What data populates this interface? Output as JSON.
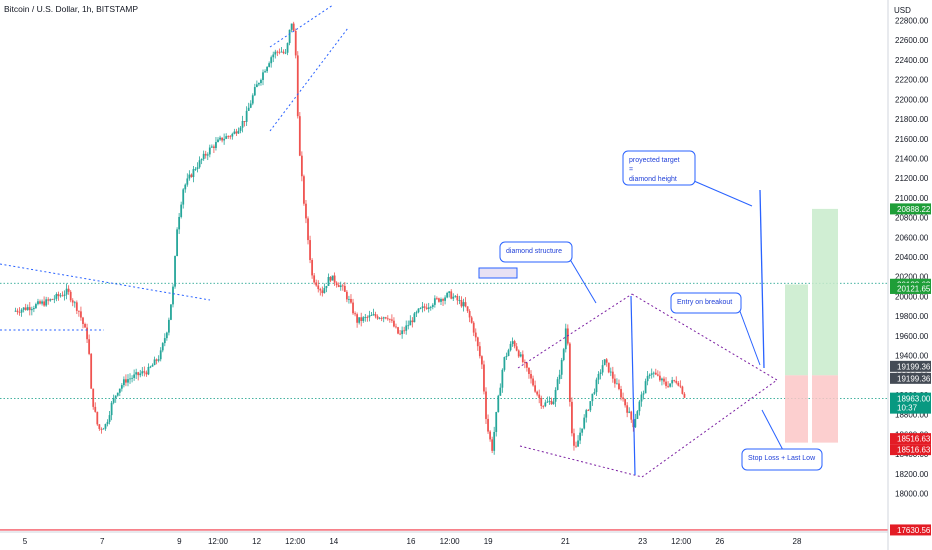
{
  "header": {
    "title": "Bitcoin / U.S. Dollar, 1h, BITSTAMP"
  },
  "colors": {
    "up": "#26a69a",
    "down": "#ef5350",
    "annotation": "#2962ff",
    "triangle": "#7b1fa2",
    "grid_line": "#089981",
    "target_zone": "#c8ebcb",
    "stop_zone": "#fcc7c7"
  },
  "chart_data": {
    "type": "candlestick",
    "symbol": "Bitcoin / U.S. Dollar",
    "interval": "1h",
    "exchange": "BITSTAMP",
    "currency": "USD",
    "ylim": [
      17630,
      23150
    ],
    "y_ticks": [
      {
        "value": 18000,
        "label": "18000.00"
      },
      {
        "value": 18200,
        "label": "18200.00"
      },
      {
        "value": 18400,
        "label": "18400.00"
      },
      {
        "value": 18600,
        "label": "18600.00"
      },
      {
        "value": 18800,
        "label": "18800.00"
      },
      {
        "value": 19000,
        "label": "19000.00"
      },
      {
        "value": 19200,
        "label": "19200.00"
      },
      {
        "value": 19400,
        "label": "19400.00"
      },
      {
        "value": 19600,
        "label": "19600.00"
      },
      {
        "value": 19800,
        "label": "19800.00"
      },
      {
        "value": 20000,
        "label": "20000.00"
      },
      {
        "value": 20200,
        "label": "20200.00"
      },
      {
        "value": 20400,
        "label": "20400.00"
      },
      {
        "value": 20600,
        "label": "20600.00"
      },
      {
        "value": 20800,
        "label": "20800.00"
      },
      {
        "value": 21000,
        "label": "21000.00"
      },
      {
        "value": 21200,
        "label": "21200.00"
      },
      {
        "value": 21400,
        "label": "21400.00"
      },
      {
        "value": 21600,
        "label": "21600.00"
      },
      {
        "value": 21800,
        "label": "21800.00"
      },
      {
        "value": 22000,
        "label": "22000.00"
      },
      {
        "value": 22200,
        "label": "22200.00"
      },
      {
        "value": 22400,
        "label": "22400.00"
      },
      {
        "value": 22600,
        "label": "22600.00"
      },
      {
        "value": 22800,
        "label": "22800.00"
      }
    ],
    "x_ticks": [
      {
        "t": 0,
        "label": "5"
      },
      {
        "t": 1,
        "label": "7"
      },
      {
        "t": 2,
        "label": "9"
      },
      {
        "t": 2.5,
        "label": "12:00"
      },
      {
        "t": 3,
        "label": "12"
      },
      {
        "t": 3.5,
        "label": "12:00"
      },
      {
        "t": 4,
        "label": "14"
      },
      {
        "t": 5,
        "label": "16"
      },
      {
        "t": 5.5,
        "label": "12:00"
      },
      {
        "t": 6,
        "label": "19"
      },
      {
        "t": 7,
        "label": "21"
      },
      {
        "t": 8,
        "label": "23"
      },
      {
        "t": 8.5,
        "label": "12:00"
      },
      {
        "t": 9,
        "label": "26"
      },
      {
        "t": 10,
        "label": "28"
      }
    ],
    "price_path": [
      [
        -0.15,
        19850
      ],
      [
        0.1,
        19900
      ],
      [
        0.3,
        19950
      ],
      [
        0.55,
        20050
      ],
      [
        0.7,
        19850
      ],
      [
        0.82,
        19550
      ],
      [
        0.86,
        19000
      ],
      [
        0.95,
        18650
      ],
      [
        1.05,
        18700
      ],
      [
        1.12,
        18900
      ],
      [
        1.2,
        19050
      ],
      [
        1.3,
        19150
      ],
      [
        1.45,
        19200
      ],
      [
        1.6,
        19250
      ],
      [
        1.75,
        19400
      ],
      [
        1.85,
        19700
      ],
      [
        1.92,
        20100
      ],
      [
        1.97,
        20700
      ],
      [
        2.05,
        21100
      ],
      [
        2.2,
        21300
      ],
      [
        2.4,
        21500
      ],
      [
        2.55,
        21600
      ],
      [
        2.7,
        21650
      ],
      [
        2.85,
        21800
      ],
      [
        2.98,
        22100
      ],
      [
        3.1,
        22300
      ],
      [
        3.2,
        22450
      ],
      [
        3.3,
        22500
      ],
      [
        3.38,
        22450
      ],
      [
        3.45,
        22800
      ],
      [
        3.5,
        22600
      ],
      [
        3.55,
        21500
      ],
      [
        3.62,
        20900
      ],
      [
        3.72,
        20200
      ],
      [
        3.85,
        20050
      ],
      [
        3.95,
        20200
      ],
      [
        4.1,
        20100
      ],
      [
        4.2,
        19950
      ],
      [
        4.3,
        19750
      ],
      [
        4.5,
        19800
      ],
      [
        4.7,
        19800
      ],
      [
        4.85,
        19600
      ],
      [
        5.0,
        19750
      ],
      [
        5.1,
        19850
      ],
      [
        5.3,
        19950
      ],
      [
        5.5,
        20020
      ],
      [
        5.7,
        19900
      ],
      [
        5.8,
        19700
      ],
      [
        5.92,
        19300
      ],
      [
        5.98,
        18700
      ],
      [
        6.05,
        18450
      ],
      [
        6.12,
        18900
      ],
      [
        6.2,
        19350
      ],
      [
        6.32,
        19550
      ],
      [
        6.5,
        19250
      ],
      [
        6.7,
        18900
      ],
      [
        6.85,
        18950
      ],
      [
        6.97,
        19400
      ],
      [
        7.02,
        19800
      ],
      [
        7.07,
        18700
      ],
      [
        7.12,
        18400
      ],
      [
        7.2,
        18650
      ],
      [
        7.35,
        19000
      ],
      [
        7.5,
        19350
      ],
      [
        7.6,
        19200
      ],
      [
        7.75,
        18950
      ],
      [
        7.88,
        18700
      ],
      [
        7.95,
        18900
      ],
      [
        8.1,
        19250
      ],
      [
        8.3,
        19100
      ],
      [
        8.45,
        19150
      ],
      [
        8.55,
        18980
      ]
    ],
    "last_price": 18963.0
  },
  "axis": {
    "currency_label": "USD"
  },
  "price_tags": {
    "target": "20888.22",
    "level1": "20133.62",
    "level2": "20121.65",
    "entry_a": "19199.36",
    "entry_b": "19199.36",
    "last": "18963.00",
    "countdown": "10:37",
    "stop_a": "18516.63",
    "stop_b": "18516.63",
    "bottom": "17630.56"
  },
  "annotations": {
    "target_line1": "proyected target",
    "target_line2": "=",
    "target_line3": "diamond height",
    "diamond": "diamond structure",
    "entry": "Entry on breakout",
    "stop": "Stop Loss + Last Low"
  }
}
